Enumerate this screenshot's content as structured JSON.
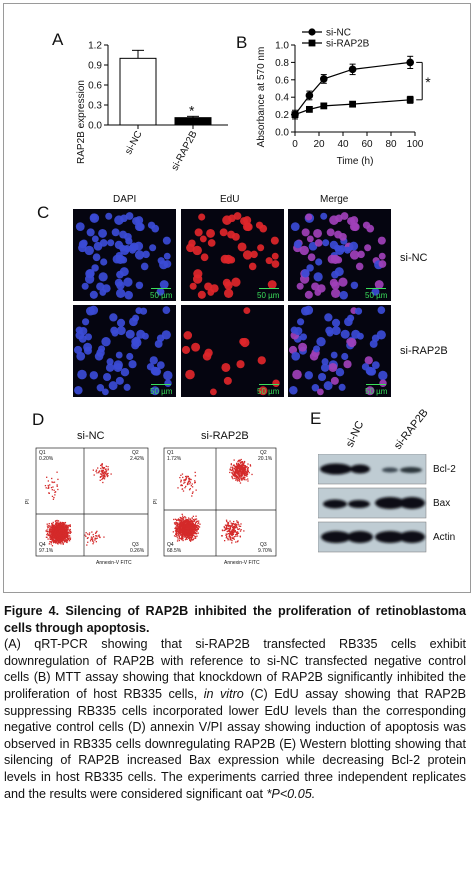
{
  "panel_a": {
    "letter": "A",
    "ylabel": "RAP2B expression",
    "yticks": [
      "0.0",
      "0.3",
      "0.6",
      "0.9",
      "1.2"
    ],
    "significance": "*"
  },
  "panel_b": {
    "letter": "B",
    "ylabel": "Absorbance at 570 nm",
    "xlabel": "Time (h)",
    "yticks": [
      "0.0",
      "0.2",
      "0.4",
      "0.6",
      "0.8",
      "1.0"
    ],
    "xticks": [
      "0",
      "20",
      "40",
      "60",
      "80",
      "100"
    ],
    "significance": "*"
  },
  "chart_data": [
    {
      "type": "bar",
      "categories": [
        "si-NC",
        "si-RAP2B"
      ],
      "values": [
        1.0,
        0.11
      ],
      "errors": [
        0.12,
        0.02
      ],
      "xlabel": "",
      "ylabel": "RAP2B expression",
      "ylim": [
        0,
        1.2
      ],
      "bar_colors": [
        "#ffffff",
        "#000000"
      ]
    },
    {
      "type": "line",
      "x": [
        0,
        12,
        24,
        48,
        96
      ],
      "series": [
        {
          "name": "si-NC",
          "marker": "circle",
          "values": [
            0.2,
            0.42,
            0.61,
            0.72,
            0.8
          ],
          "errors": [
            0.05,
            0.05,
            0.05,
            0.06,
            0.07
          ]
        },
        {
          "name": "si-RAP2B",
          "marker": "square",
          "values": [
            0.2,
            0.26,
            0.3,
            0.32,
            0.37
          ],
          "errors": [
            0.02,
            0.02,
            0.02,
            0.02,
            0.04
          ]
        }
      ],
      "xlabel": "Time (h)",
      "ylabel": "Absorbance at 570 nm",
      "xlim": [
        0,
        100
      ],
      "ylim": [
        0,
        1.0
      ]
    }
  ],
  "panel_c": {
    "letter": "C",
    "columns": [
      "DAPI",
      "EdU",
      "Merge"
    ],
    "rows": [
      "si-NC",
      "si-RAP2B"
    ],
    "scale": "50 µm"
  },
  "panel_d": {
    "letter": "D",
    "plots": [
      {
        "title": "si-NC",
        "q1": "Q1",
        "q2": "Q2",
        "q3": "Q3",
        "q4": "Q4",
        "q1_val": "0.20%",
        "q2_val": "2.42%",
        "q3_val": "0.26%",
        "q4_val": "97.1%",
        "xaxis": "Annexin-V FITC",
        "yaxis": "PI"
      },
      {
        "title": "si-RAP2B",
        "q1": "Q1",
        "q2": "Q2",
        "q3": "Q3",
        "q4": "Q4",
        "q1_val": "1.72%",
        "q2_val": "20.1%",
        "q3_val": "9.70%",
        "q4_val": "68.5%",
        "xaxis": "Annexin-V FITC",
        "yaxis": "PI"
      }
    ]
  },
  "panel_e": {
    "letter": "E",
    "lanes": [
      "si-NC",
      "si-RAP2B"
    ],
    "bands": [
      "Bcl-2",
      "Bax",
      "Actin"
    ]
  },
  "caption": {
    "title": "Figure 4. Silencing of RAP2B inhibited the proliferation of retinoblastoma cells through apoptosis.",
    "body_1": "(A) qRT-PCR showing that si-RAP2B transfected RB335 cells exhibit downregulation of RAP2B with reference to si-NC transfected negative control cells (B) MTT assay showing that knockdown of RAP2B significantly inhibited the proliferation of host RB335 cells,",
    "body_italic": "in vitro",
    "body_2": "(C) EdU assay showing that RAP2B suppressing RB335 cells incorporated lower EdU levels than the corresponding negative control cells (D) annexin V/PI assay showing induction of apoptosis was observed in RB335 cells downregulating RAP2B (E) Western blotting showing that silencing of RAP2B increased Bax expression while decreasing Bcl-2 protein levels in host RB335 cells. The experiments carried three independent replicates and the results were considered significant oat",
    "body_3": "*P<0.05."
  }
}
